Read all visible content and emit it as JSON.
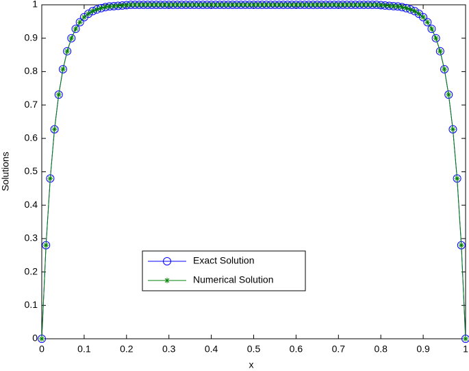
{
  "chart_data": {
    "type": "line",
    "x_label": "x",
    "y_label": "Solutions",
    "x": [
      0,
      0.01,
      0.02,
      0.03,
      0.04,
      0.05,
      0.06,
      0.07,
      0.08,
      0.09,
      0.1,
      0.11,
      0.12,
      0.13,
      0.14,
      0.15,
      0.16,
      0.17,
      0.18,
      0.19,
      0.2,
      0.21,
      0.22,
      0.23,
      0.24,
      0.25,
      0.26,
      0.27,
      0.28,
      0.29,
      0.3,
      0.31,
      0.32,
      0.33,
      0.34,
      0.35,
      0.36,
      0.37,
      0.38,
      0.39,
      0.4,
      0.41,
      0.42,
      0.43,
      0.44,
      0.45,
      0.46,
      0.47,
      0.48,
      0.49,
      0.5,
      0.51,
      0.52,
      0.53,
      0.54,
      0.55,
      0.56,
      0.57,
      0.58,
      0.59,
      0.6,
      0.61,
      0.62,
      0.63,
      0.64,
      0.65,
      0.66,
      0.67,
      0.68,
      0.69,
      0.7,
      0.71,
      0.72,
      0.73,
      0.74,
      0.75,
      0.76,
      0.77,
      0.78,
      0.79,
      0.8,
      0.81,
      0.82,
      0.83,
      0.84,
      0.85,
      0.86,
      0.87,
      0.88,
      0.89,
      0.9,
      0.91,
      0.92,
      0.93,
      0.94,
      0.95,
      0.96,
      0.97,
      0.98,
      0.99,
      1
    ],
    "series": [
      {
        "name": "Exact Solution",
        "color": "#0000ff",
        "marker": "circle",
        "values": [
          0,
          0.28,
          0.48,
          0.627,
          0.731,
          0.807,
          0.861,
          0.9,
          0.928,
          0.948,
          0.963,
          0.973,
          0.981,
          0.986,
          0.99,
          0.993,
          0.995,
          0.996,
          0.997,
          0.998,
          0.999,
          1,
          1,
          1,
          1,
          1,
          1,
          1,
          1,
          1,
          1,
          1,
          1,
          1,
          1,
          1,
          1,
          1,
          1,
          1,
          1,
          1,
          1,
          1,
          1,
          1,
          1,
          1,
          1,
          1,
          1,
          1,
          1,
          1,
          1,
          1,
          1,
          1,
          1,
          1,
          1,
          1,
          1,
          1,
          1,
          1,
          1,
          1,
          1,
          1,
          1,
          1,
          1,
          1,
          1,
          1,
          1,
          1,
          1,
          1,
          0.999,
          0.998,
          0.997,
          0.996,
          0.995,
          0.993,
          0.99,
          0.986,
          0.981,
          0.973,
          0.963,
          0.948,
          0.928,
          0.9,
          0.861,
          0.807,
          0.731,
          0.627,
          0.48,
          0.28,
          0
        ]
      },
      {
        "name": "Numerical Solution",
        "color": "#008000",
        "marker": "star",
        "values": [
          0,
          0.28,
          0.48,
          0.627,
          0.731,
          0.807,
          0.861,
          0.9,
          0.928,
          0.948,
          0.963,
          0.973,
          0.981,
          0.986,
          0.99,
          0.993,
          0.995,
          0.996,
          0.997,
          0.998,
          0.999,
          1,
          1,
          1,
          1,
          1,
          1,
          1,
          1,
          1,
          1,
          1,
          1,
          1,
          1,
          1,
          1,
          1,
          1,
          1,
          1,
          1,
          1,
          1,
          1,
          1,
          1,
          1,
          1,
          1,
          1,
          1,
          1,
          1,
          1,
          1,
          1,
          1,
          1,
          1,
          1,
          1,
          1,
          1,
          1,
          1,
          1,
          1,
          1,
          1,
          1,
          1,
          1,
          1,
          1,
          1,
          1,
          1,
          1,
          1,
          0.999,
          0.998,
          0.997,
          0.996,
          0.995,
          0.993,
          0.99,
          0.986,
          0.981,
          0.973,
          0.963,
          0.948,
          0.928,
          0.9,
          0.861,
          0.807,
          0.731,
          0.627,
          0.48,
          0.28,
          0
        ]
      }
    ],
    "xlim": [
      0,
      1
    ],
    "ylim": [
      0,
      1
    ],
    "xticks": [
      0,
      0.1,
      0.2,
      0.3,
      0.4,
      0.5,
      0.6,
      0.7,
      0.8,
      0.9,
      1
    ],
    "yticks": [
      0,
      0.1,
      0.2,
      0.3,
      0.4,
      0.5,
      0.6,
      0.7,
      0.8,
      0.9,
      1
    ],
    "grid": false,
    "legend": "lower-center"
  }
}
